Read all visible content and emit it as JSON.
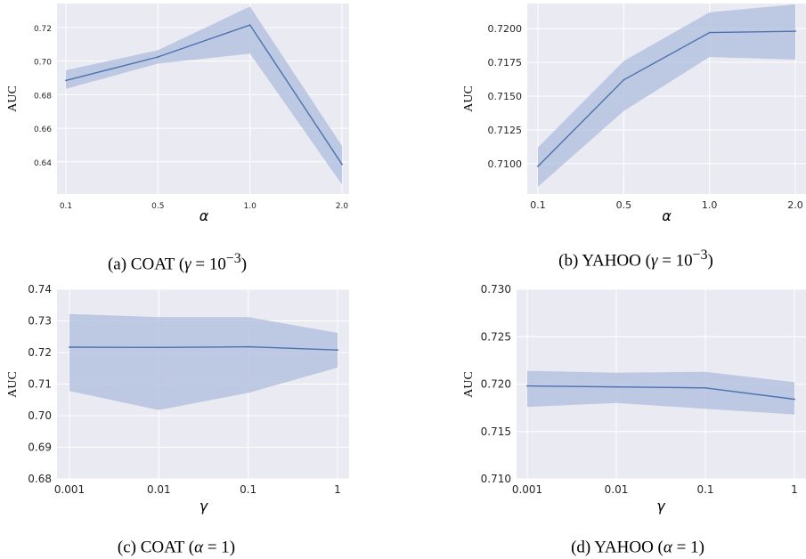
{
  "chart_data": [
    {
      "type": "line",
      "caption": {
        "prefix": "(a) COAT (",
        "sym": "γ",
        "mid": " = 10",
        "sup": "−3",
        "suffix": ")"
      },
      "xlabel": "α",
      "ylabel": "AUC",
      "categories": [
        "0.1",
        "0.5",
        "1.0",
        "2.0"
      ],
      "series": [
        {
          "values": [
            0.6885,
            0.7025,
            0.7215,
            0.6385
          ],
          "lower": [
            0.6835,
            0.6985,
            0.7045,
            0.6265
          ],
          "upper": [
            0.6945,
            0.7065,
            0.7325,
            0.6495
          ]
        }
      ],
      "yticks": [
        "0.64",
        "0.66",
        "0.68",
        "0.70",
        "0.72"
      ],
      "ylim": [
        0.6208,
        0.7343
      ],
      "grid": true,
      "color": "#4c72b0",
      "band_color": "#aebcdc",
      "background": "#eaeaf2"
    },
    {
      "type": "line",
      "caption": {
        "prefix": "(b) YAHOO (",
        "sym": "γ",
        "mid": " = 10",
        "sup": "−3",
        "suffix": ")"
      },
      "xlabel": "α",
      "ylabel": "AUC",
      "categories": [
        "0.1",
        "0.5",
        "1.0",
        "2.0"
      ],
      "series": [
        {
          "values": [
            0.7098,
            0.7162,
            0.7197,
            0.7198
          ],
          "lower": [
            0.7083,
            0.7139,
            0.7179,
            0.7177
          ],
          "upper": [
            0.7112,
            0.7176,
            0.7212,
            0.7218
          ]
        }
      ],
      "yticks": [
        "0.7100",
        "0.7125",
        "0.7150",
        "0.7175",
        "0.7200"
      ],
      "ylim": [
        0.70775,
        0.72185
      ],
      "grid": true,
      "color": "#4c72b0",
      "band_color": "#aebcdc",
      "background": "#eaeaf2"
    },
    {
      "type": "line",
      "caption": {
        "prefix": "(c) COAT (",
        "sym": "α",
        "mid": " = 1",
        "sup": "",
        "suffix": ")"
      },
      "xlabel": "γ",
      "ylabel": "AUC",
      "categories": [
        "0.001",
        "0.01",
        "0.1",
        "1"
      ],
      "series": [
        {
          "values": [
            0.7217,
            0.7216,
            0.7218,
            0.7208
          ],
          "lower": [
            0.7078,
            0.7018,
            0.7072,
            0.7152
          ],
          "upper": [
            0.7322,
            0.7312,
            0.7312,
            0.7262
          ]
        }
      ],
      "yticks": [
        "0.68",
        "0.69",
        "0.70",
        "0.71",
        "0.72",
        "0.73",
        "0.74"
      ],
      "ylim": [
        0.68,
        0.74
      ],
      "grid": true,
      "color": "#4c72b0",
      "band_color": "#aebcdc",
      "background": "#eaeaf2"
    },
    {
      "type": "line",
      "caption": {
        "prefix": "(d) YAHOO (",
        "sym": "α",
        "mid": " = 1",
        "sup": "",
        "suffix": ")"
      },
      "xlabel": "γ",
      "ylabel": "AUC",
      "categories": [
        "0.001",
        "0.01",
        "0.1",
        "1"
      ],
      "series": [
        {
          "values": [
            0.7198,
            0.7197,
            0.7196,
            0.7184
          ],
          "lower": [
            0.7176,
            0.718,
            0.7174,
            0.7168
          ],
          "upper": [
            0.7214,
            0.7212,
            0.7213,
            0.7202
          ]
        }
      ],
      "yticks": [
        "0.710",
        "0.715",
        "0.720",
        "0.725",
        "0.730"
      ],
      "ylim": [
        0.71,
        0.73
      ],
      "grid": true,
      "color": "#4c72b0",
      "band_color": "#aebcdc",
      "background": "#eaeaf2"
    }
  ]
}
